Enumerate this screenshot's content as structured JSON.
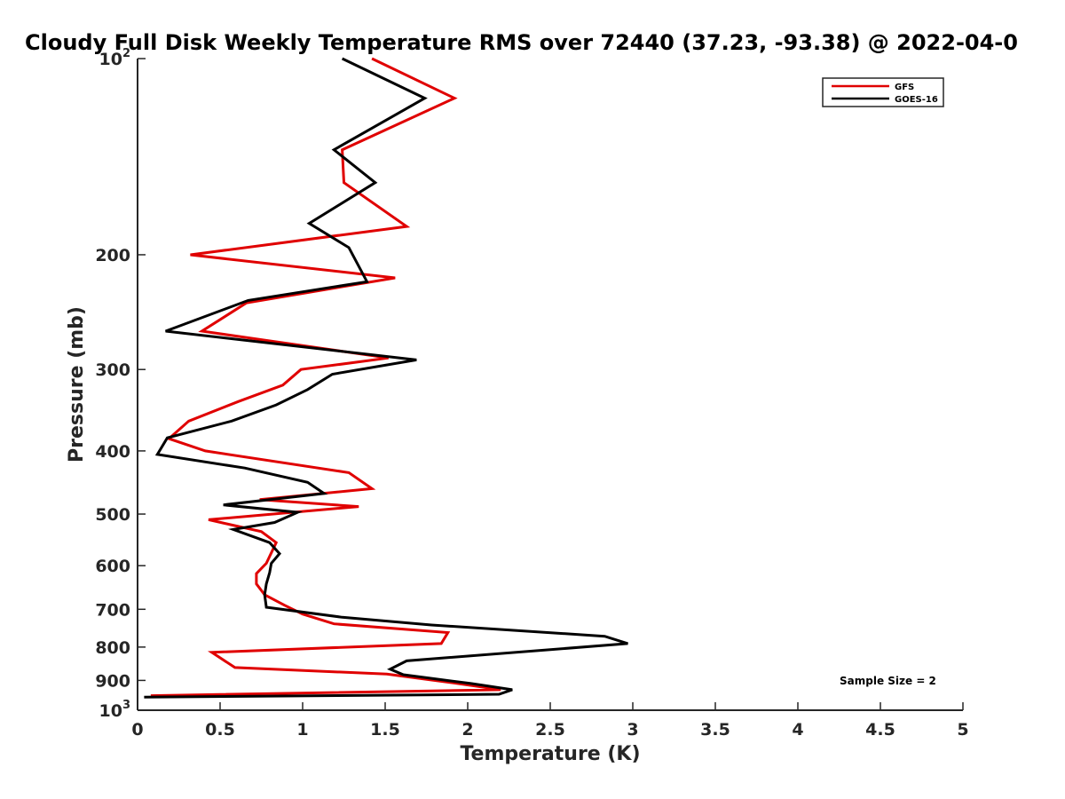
{
  "chart_data": {
    "type": "line",
    "title": "Cloudy Full Disk Weekly Temperature RMS over 72440 (37.23, -93.38) @ 2022-04-0",
    "xlabel": "Temperature (K)",
    "ylabel": "Pressure (mb)",
    "xlim": [
      0,
      5
    ],
    "ylim": [
      100,
      1000
    ],
    "y_scale": "log",
    "y_reversed": true,
    "grid": false,
    "legend_position": "top-right",
    "x_ticks": [
      "0",
      "0.5",
      "1",
      "1.5",
      "2",
      "2.5",
      "3",
      "3.5",
      "4",
      "4.5",
      "5"
    ],
    "x_tick_values": [
      0,
      0.5,
      1,
      1.5,
      2,
      2.5,
      3,
      3.5,
      4,
      4.5,
      5
    ],
    "y_ticks": [
      {
        "value": 100,
        "base": "10",
        "exp": "2"
      },
      {
        "value": 200,
        "label": "200"
      },
      {
        "value": 300,
        "label": "300"
      },
      {
        "value": 400,
        "label": "400"
      },
      {
        "value": 500,
        "label": "500"
      },
      {
        "value": 600,
        "label": "600"
      },
      {
        "value": 700,
        "label": "700"
      },
      {
        "value": 800,
        "label": "800"
      },
      {
        "value": 900,
        "label": "900"
      },
      {
        "value": 1000,
        "base": "10",
        "exp": "3"
      }
    ],
    "series": [
      {
        "name": "GFS",
        "color": "#e00000",
        "x": [
          1.42,
          1.92,
          1.24,
          1.25,
          1.63,
          0.32,
          1.56,
          0.66,
          0.39,
          1.52,
          0.99,
          0.88,
          0.61,
          0.31,
          0.19,
          0.41,
          1.28,
          1.42,
          0.74,
          1.34,
          0.43,
          0.75,
          0.84,
          0.78,
          0.72,
          0.72,
          0.77,
          0.89,
          1.0,
          1.19,
          1.88,
          1.84,
          0.45,
          0.59,
          1.51,
          1.91,
          2.2,
          0.08
        ],
        "y": [
          100,
          115,
          138,
          155,
          181,
          200,
          217,
          237,
          262,
          288,
          300,
          317,
          336,
          360,
          383,
          400,
          432,
          457,
          475,
          487,
          510,
          532,
          553,
          595,
          617,
          640,
          665,
          690,
          712,
          737,
          760,
          790,
          815,
          860,
          880,
          908,
          930,
          950
        ]
      },
      {
        "name": "GOES-16",
        "color": "#000000",
        "x": [
          1.24,
          1.74,
          1.19,
          1.44,
          1.04,
          1.28,
          1.39,
          0.67,
          0.17,
          1.69,
          1.18,
          1.03,
          0.84,
          0.57,
          0.18,
          0.12,
          0.65,
          1.03,
          1.13,
          0.52,
          0.97,
          0.83,
          0.58,
          0.8,
          0.86,
          0.81,
          0.8,
          0.78,
          0.77,
          0.78,
          1.24,
          1.78,
          2.83,
          2.97,
          1.63,
          1.53,
          1.61,
          2.02,
          2.27,
          2.19,
          0.04
        ],
        "y": [
          100,
          115,
          138,
          155,
          179,
          195,
          220,
          235,
          262,
          290,
          305,
          322,
          340,
          360,
          382,
          405,
          425,
          447,
          465,
          484,
          497,
          515,
          528,
          553,
          575,
          595,
          615,
          640,
          665,
          695,
          720,
          740,
          770,
          790,
          840,
          865,
          882,
          910,
          930,
          945,
          955
        ]
      }
    ],
    "annotation": "Sample Size = 2"
  }
}
